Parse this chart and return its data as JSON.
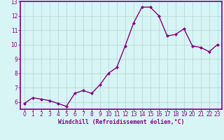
{
  "x": [
    0,
    1,
    2,
    3,
    4,
    5,
    6,
    7,
    8,
    9,
    10,
    11,
    12,
    13,
    14,
    15,
    16,
    17,
    18,
    19,
    20,
    21,
    22,
    23
  ],
  "y": [
    5.9,
    6.3,
    6.2,
    6.1,
    5.9,
    5.7,
    6.6,
    6.8,
    6.6,
    7.2,
    8.0,
    8.4,
    9.9,
    11.5,
    12.6,
    12.6,
    12.0,
    10.6,
    10.7,
    11.1,
    9.9,
    9.8,
    9.5,
    10.0
  ],
  "line_color": "#800080",
  "marker": "D",
  "markersize": 2.0,
  "linewidth": 1.0,
  "bg_color": "#d8f5f5",
  "grid_color": "#b8d8d8",
  "xlabel": "Windchill (Refroidissement éolien,°C)",
  "xlabel_color": "#800080",
  "tick_color": "#800080",
  "spine_color": "#800080",
  "ylim_min": 5.5,
  "ylim_max": 13.0,
  "xlim_min": -0.5,
  "xlim_max": 23.5,
  "yticks": [
    6,
    7,
    8,
    9,
    10,
    11,
    12,
    13
  ],
  "xticks": [
    0,
    1,
    2,
    3,
    4,
    5,
    6,
    7,
    8,
    9,
    10,
    11,
    12,
    13,
    14,
    15,
    16,
    17,
    18,
    19,
    20,
    21,
    22,
    23
  ],
  "xlabel_fontsize": 5.8,
  "tick_fontsize": 5.5
}
